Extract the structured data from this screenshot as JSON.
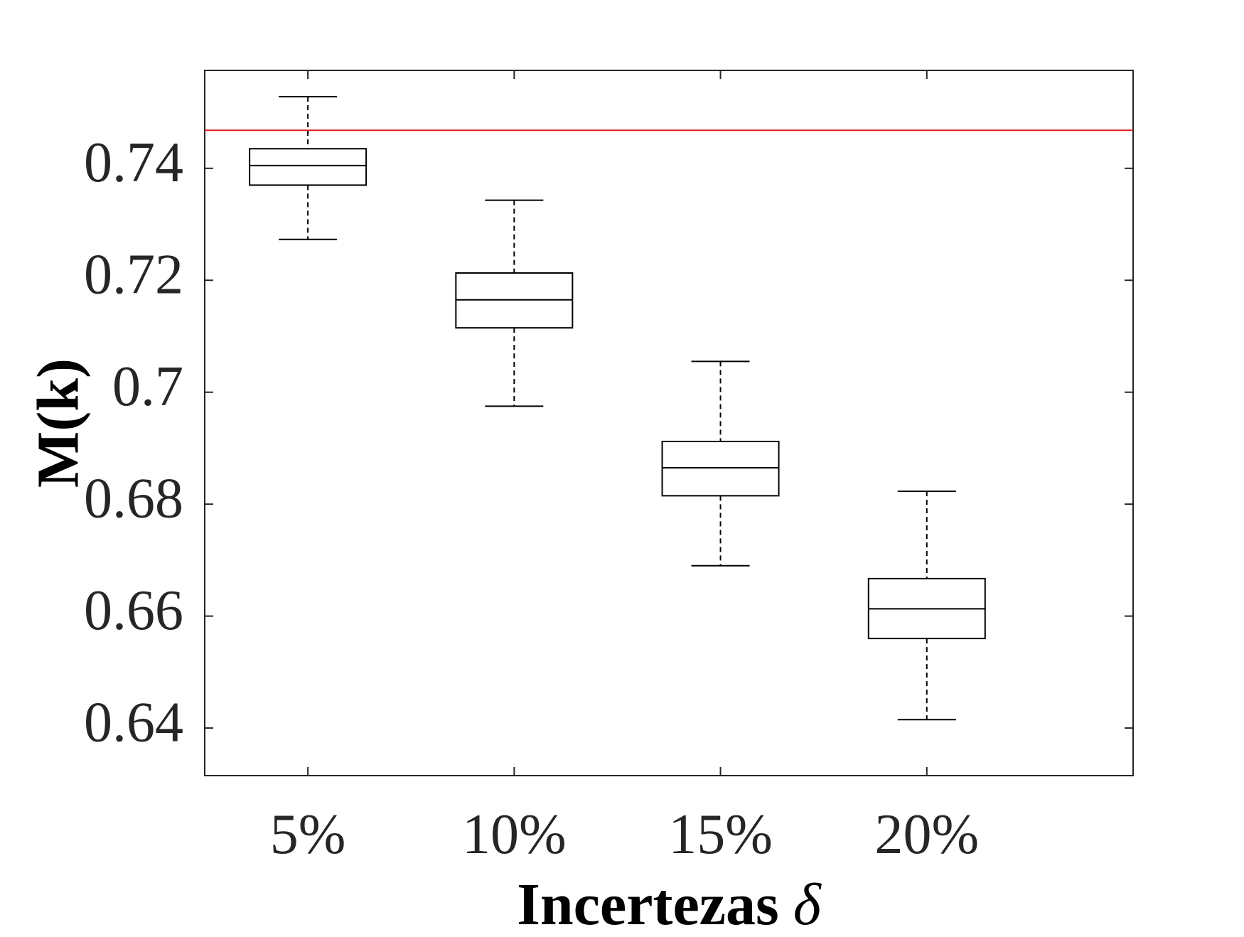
{
  "chart_data": {
    "type": "boxplot",
    "xlabel": "Incertezas",
    "xlabel_symbol": "δ",
    "ylabel": "M(k)",
    "categories": [
      "5%",
      "10%",
      "15%",
      "20%"
    ],
    "ylim": [
      0.6315,
      0.7575
    ],
    "yticks": [
      0.64,
      0.66,
      0.68,
      0.7,
      0.72,
      0.74
    ],
    "ytick_labels": [
      "0.64",
      "0.66",
      "0.68",
      "0.7",
      "0.72",
      "0.74"
    ],
    "boxes": [
      {
        "category": "5%",
        "whisker_low": 0.7273,
        "q1": 0.737,
        "median": 0.7405,
        "q3": 0.7435,
        "whisker_high": 0.7528
      },
      {
        "category": "10%",
        "whisker_low": 0.6975,
        "q1": 0.7115,
        "median": 0.7165,
        "q3": 0.7213,
        "whisker_high": 0.7343
      },
      {
        "category": "15%",
        "whisker_low": 0.669,
        "q1": 0.6815,
        "median": 0.6865,
        "q3": 0.6912,
        "whisker_high": 0.7055
      },
      {
        "category": "20%",
        "whisker_low": 0.6415,
        "q1": 0.656,
        "median": 0.6613,
        "q3": 0.6667,
        "whisker_high": 0.6823
      }
    ],
    "reference_line": {
      "value": 0.7468,
      "color": "#e41a1c"
    },
    "grid": false,
    "colors": {
      "box": "#000000",
      "axis": "#262626",
      "reference": "#e41a1c"
    }
  }
}
